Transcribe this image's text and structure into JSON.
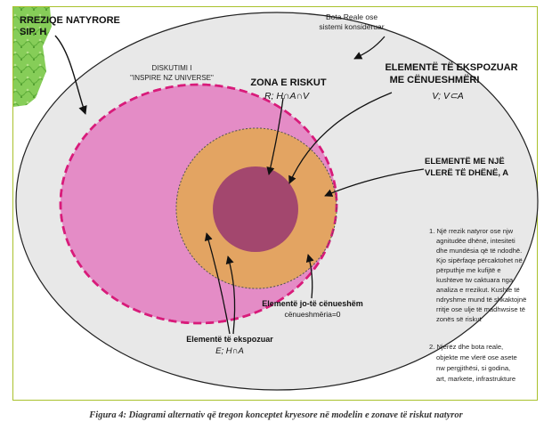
{
  "hazard": {
    "line1": "RREZIQE NATYRORE",
    "line2": "SIP. H"
  },
  "universe": {
    "line1": "Bota Reale ose",
    "line2": "sistemi konsideruar"
  },
  "discussion": {
    "line1": "DISKUTIMI I",
    "line2": "\"INSPIRE NZ UNIVERSE\""
  },
  "risk_zone": {
    "title": "ZONA E RISKUT",
    "formula": "R; H∩A∩V"
  },
  "exposed_vulnerable": {
    "line1": "ELEMENTË TË EKSPOZUAR",
    "line2": "ME CËNUESHMËRI",
    "formula": "V;  V⊂A"
  },
  "valued_elements": {
    "line1": "ELEMENTË ME NJË",
    "line2": "VLERË TË DHËNË, A"
  },
  "non_vulnerable": {
    "line1": "Elementë jo-të cënueshëm",
    "line2": "cënueshmëria=0"
  },
  "exposed": {
    "line1": "Elementë të ekspozuar",
    "line2": "E; H∩A"
  },
  "note1": {
    "lines": [
      "1. Një rrezik natyror ose njw",
      "agnitudëe dhënë, intesiteti",
      "dhe mundësia që të ndodhë.",
      "Kjo sipërfaqe përcaktohet në",
      "përputhje me kufijtë e",
      "kushteve tw caktuara nga",
      "analiza e rrezikut. Kushte të",
      "ndryshme mund të shkaktojnë",
      "rritje ose ulje të madhwsise të",
      "zonës së riskut"
    ]
  },
  "note2": {
    "lines": [
      "2. Njerëz dhe bota reale,",
      "objekte me vlerë ose asete",
      "nw pergjithësi, si godina,",
      "art, markete, infrastrukture"
    ]
  },
  "caption": "Figura 4: Diagrami alternativ që tregon konceptet kryesore në modelin e zonave të riskut natyror",
  "colors": {
    "frame": "#a9c12d",
    "universe_fill": "#e8e8e8",
    "hazard_fill": "#e48cc6",
    "hazard_border": "#d81b7a",
    "exposed_fill": "#e3a462",
    "valued_fill": "#f3f300",
    "risk_fill": "#a3476e",
    "map_green": "#7ec850"
  }
}
